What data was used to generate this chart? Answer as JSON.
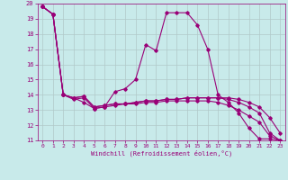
{
  "xlabel": "Windchill (Refroidissement éolien,°C)",
  "bg_color": "#c8eaea",
  "line_color": "#990077",
  "grid_color": "#b0c8c8",
  "xlim": [
    -0.5,
    23.5
  ],
  "ylim": [
    11,
    20
  ],
  "xticks": [
    0,
    1,
    2,
    3,
    4,
    5,
    6,
    7,
    8,
    9,
    10,
    11,
    12,
    13,
    14,
    15,
    16,
    17,
    18,
    19,
    20,
    21,
    22,
    23
  ],
  "yticks": [
    11,
    12,
    13,
    14,
    15,
    16,
    17,
    18,
    19,
    20
  ],
  "series": [
    {
      "x": [
        0,
        1,
        2,
        3,
        4,
        5,
        6,
        7,
        8,
        9,
        10,
        11,
        12,
        13,
        14,
        15,
        16,
        17,
        18,
        19,
        20,
        21,
        22,
        23
      ],
      "y": [
        19.8,
        19.3,
        14.0,
        13.7,
        13.8,
        13.1,
        13.2,
        14.2,
        14.4,
        15.0,
        17.3,
        16.9,
        19.4,
        19.4,
        19.4,
        18.6,
        17.0,
        14.0,
        13.5,
        12.8,
        11.8,
        11.1,
        11.1,
        11.0
      ]
    },
    {
      "x": [
        0,
        1,
        2,
        3,
        4,
        5,
        6,
        7,
        8,
        9,
        10,
        11,
        12,
        13,
        14,
        15,
        16,
        17,
        18,
        19,
        20,
        21,
        22,
        23
      ],
      "y": [
        19.8,
        19.3,
        14.0,
        13.8,
        13.9,
        13.2,
        13.3,
        13.4,
        13.4,
        13.5,
        13.6,
        13.6,
        13.7,
        13.7,
        13.8,
        13.8,
        13.8,
        13.8,
        13.8,
        13.7,
        13.5,
        13.2,
        12.5,
        11.5
      ]
    },
    {
      "x": [
        0,
        1,
        2,
        3,
        4,
        5,
        6,
        7,
        8,
        9,
        10,
        11,
        12,
        13,
        14,
        15,
        16,
        17,
        18,
        19,
        20,
        21,
        22,
        23
      ],
      "y": [
        19.8,
        19.3,
        14.0,
        13.8,
        13.9,
        13.2,
        13.3,
        13.4,
        13.4,
        13.5,
        13.6,
        13.6,
        13.7,
        13.7,
        13.8,
        13.8,
        13.8,
        13.8,
        13.7,
        13.5,
        13.2,
        12.8,
        11.5,
        11.0
      ]
    },
    {
      "x": [
        0,
        1,
        2,
        3,
        4,
        5,
        6,
        7,
        8,
        9,
        10,
        11,
        12,
        13,
        14,
        15,
        16,
        17,
        18,
        19,
        20,
        21,
        22,
        23
      ],
      "y": [
        19.8,
        19.3,
        14.0,
        13.8,
        13.5,
        13.1,
        13.2,
        13.3,
        13.4,
        13.4,
        13.5,
        13.5,
        13.6,
        13.6,
        13.6,
        13.6,
        13.6,
        13.5,
        13.3,
        13.0,
        12.6,
        12.2,
        11.3,
        11.0
      ]
    }
  ]
}
